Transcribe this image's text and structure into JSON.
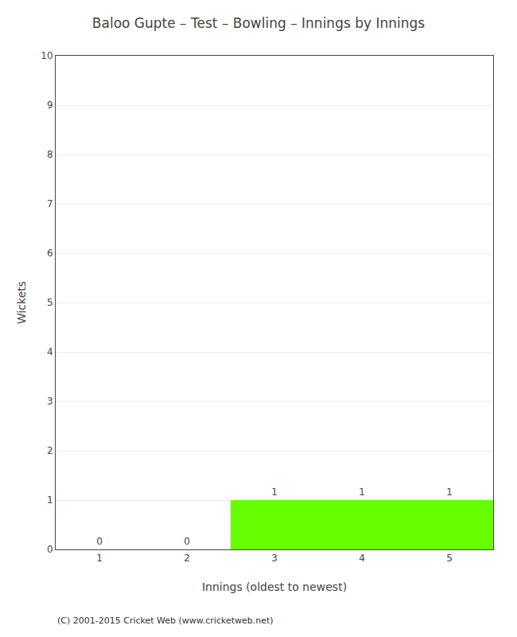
{
  "chart_data": {
    "type": "bar",
    "title": "Baloo Gupte – Test – Bowling – Innings by Innings",
    "xlabel": "Innings (oldest to newest)",
    "ylabel": "Wickets",
    "x": [
      1,
      2,
      3,
      4,
      5
    ],
    "values": [
      0,
      0,
      1,
      1,
      1
    ],
    "color": "#66ff00",
    "xlim": [
      0.5,
      5.5
    ],
    "xticks": [
      1,
      2,
      3,
      4,
      5
    ],
    "ylim": [
      0,
      10
    ],
    "yticks": [
      0,
      1,
      2,
      3,
      4,
      5,
      6,
      7,
      8,
      9,
      10
    ],
    "grid": true,
    "data_labels": true,
    "annotations": [
      "(C) 2001-2015 Cricket Web (www.cricketweb.net)"
    ]
  }
}
